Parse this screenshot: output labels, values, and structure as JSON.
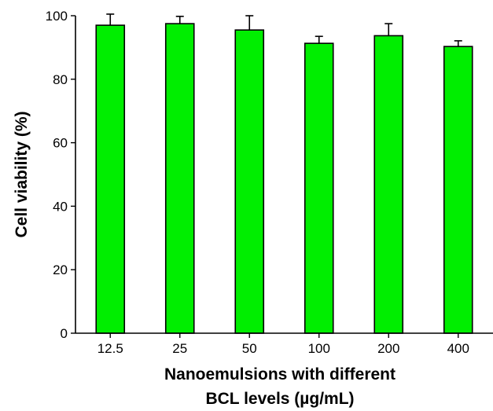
{
  "chart_data": {
    "type": "bar",
    "title": "",
    "xlabel_lines": [
      "Nanoemulsions with different",
      "BCL levels (µg/mL)"
    ],
    "ylabel": "Cell viability (%)",
    "categories": [
      "12.5",
      "25",
      "50",
      "100",
      "200",
      "400"
    ],
    "values": [
      97,
      97.5,
      95.5,
      91.3,
      93.7,
      90.3
    ],
    "error_upper": [
      3.5,
      2.3,
      4.5,
      2.2,
      3.8,
      1.8
    ],
    "ylim": [
      0,
      100
    ],
    "yticks": [
      0,
      20,
      40,
      60,
      80,
      100
    ],
    "grid": false,
    "legend": "none",
    "bar_color": "#00ee00",
    "edge_color": "#000000"
  }
}
